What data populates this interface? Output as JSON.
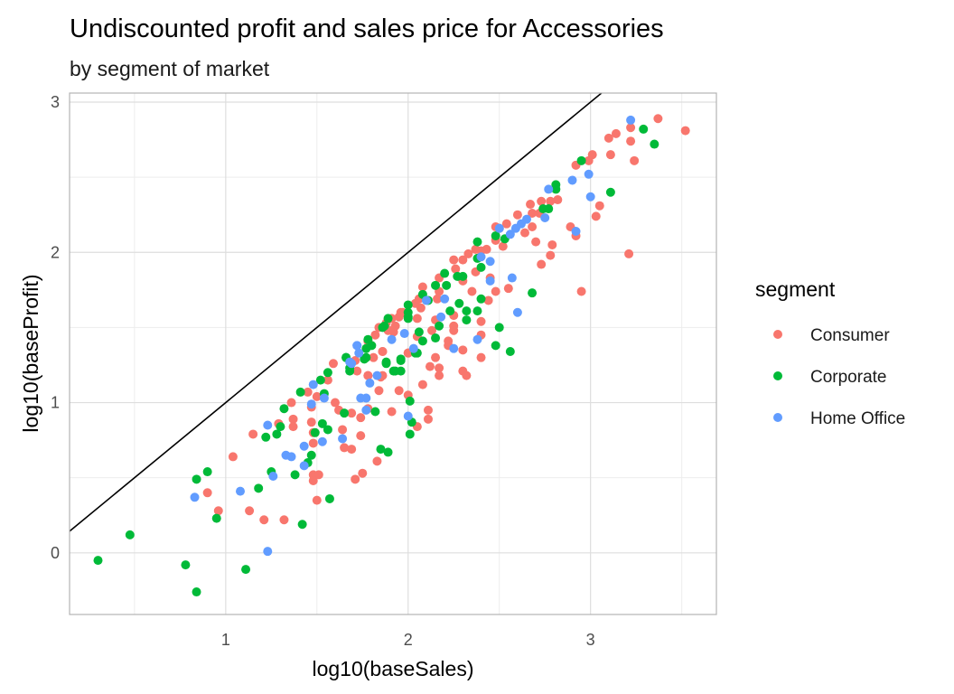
{
  "chart_data": {
    "type": "scatter",
    "title": "Undiscounted profit and sales price for Accessories",
    "subtitle": "by segment of market",
    "xlabel": "log10(baseSales)",
    "ylabel": "log10(baseProfit)",
    "xlim": [
      0.144,
      3.69
    ],
    "ylim": [
      -0.41,
      3.06
    ],
    "xticks": [
      1,
      2,
      3
    ],
    "yticks": [
      0,
      1,
      2,
      3
    ],
    "grid": true,
    "reference_line": {
      "label": "y = x",
      "slope": 1,
      "intercept": 0,
      "color": "#000000"
    },
    "legend": {
      "title": "segment",
      "placement": "right"
    },
    "series": [
      {
        "name": "Consumer",
        "color": "#F8766D",
        "points": [
          [
            0.9,
            0.4
          ],
          [
            0.96,
            0.28
          ],
          [
            1.04,
            0.64
          ],
          [
            1.13,
            0.28
          ],
          [
            1.21,
            0.22
          ],
          [
            1.32,
            0.22
          ],
          [
            1.15,
            0.79
          ],
          [
            1.36,
            1.0
          ],
          [
            1.37,
            0.89
          ],
          [
            1.37,
            0.84
          ],
          [
            1.29,
            0.86
          ],
          [
            1.47,
            0.87
          ],
          [
            1.48,
            0.8
          ],
          [
            1.48,
            0.73
          ],
          [
            1.48,
            0.52
          ],
          [
            1.51,
            0.52
          ],
          [
            1.48,
            0.48
          ],
          [
            1.5,
            0.35
          ],
          [
            1.64,
            0.82
          ],
          [
            1.65,
            0.7
          ],
          [
            1.69,
            0.69
          ],
          [
            1.74,
            0.78
          ],
          [
            1.71,
            0.49
          ],
          [
            1.75,
            0.53
          ],
          [
            1.83,
            0.61
          ],
          [
            1.91,
            0.94
          ],
          [
            1.74,
            0.9
          ],
          [
            1.69,
            0.93
          ],
          [
            1.62,
            0.95
          ],
          [
            1.78,
            0.96
          ],
          [
            1.47,
            0.97
          ],
          [
            1.6,
            1.0
          ],
          [
            1.45,
            1.07
          ],
          [
            1.5,
            1.04
          ],
          [
            1.59,
            1.26
          ],
          [
            1.56,
            1.15
          ],
          [
            1.72,
            1.21
          ],
          [
            1.78,
            1.41
          ],
          [
            1.78,
            1.18
          ],
          [
            1.86,
            1.34
          ],
          [
            1.85,
            1.17
          ],
          [
            1.84,
            1.08
          ],
          [
            1.95,
            1.08
          ],
          [
            2.0,
            1.05
          ],
          [
            2.05,
            0.84
          ],
          [
            2.0,
            1.33
          ],
          [
            2.08,
            1.12
          ],
          [
            2.11,
            0.95
          ],
          [
            2.11,
            0.89
          ],
          [
            1.96,
            1.6
          ],
          [
            1.88,
            1.53
          ],
          [
            1.89,
            1.48
          ],
          [
            3.37,
            2.89
          ],
          [
            3.52,
            2.81
          ],
          [
            3.22,
            2.83
          ],
          [
            3.22,
            2.74
          ],
          [
            3.14,
            2.79
          ],
          [
            3.1,
            2.76
          ],
          [
            3.11,
            2.65
          ],
          [
            3.24,
            2.61
          ],
          [
            3.01,
            2.65
          ],
          [
            2.99,
            2.61
          ],
          [
            2.92,
            2.58
          ],
          [
            3.05,
            2.31
          ],
          [
            3.03,
            2.24
          ],
          [
            2.82,
            2.35
          ],
          [
            2.78,
            2.34
          ],
          [
            2.73,
            2.34
          ],
          [
            2.67,
            2.32
          ],
          [
            2.72,
            2.26
          ],
          [
            2.68,
            2.26
          ],
          [
            2.6,
            2.25
          ],
          [
            2.54,
            2.19
          ],
          [
            2.5,
            2.16
          ],
          [
            2.48,
            2.17
          ],
          [
            2.52,
            2.04
          ],
          [
            2.68,
            2.17
          ],
          [
            2.64,
            2.13
          ],
          [
            2.7,
            2.07
          ],
          [
            2.79,
            2.05
          ],
          [
            2.89,
            2.17
          ],
          [
            2.92,
            2.11
          ],
          [
            2.78,
            1.98
          ],
          [
            2.73,
            1.92
          ],
          [
            3.21,
            1.99
          ],
          [
            2.95,
            1.74
          ],
          [
            2.55,
            1.76
          ],
          [
            2.4,
            1.3
          ],
          [
            2.4,
            1.45
          ],
          [
            2.4,
            1.54
          ],
          [
            2.44,
            1.68
          ],
          [
            2.48,
            1.74
          ],
          [
            2.45,
            1.83
          ],
          [
            2.35,
            1.74
          ],
          [
            2.25,
            1.58
          ],
          [
            2.15,
            1.55
          ],
          [
            2.25,
            1.51
          ],
          [
            2.25,
            1.48
          ],
          [
            2.13,
            1.48
          ],
          [
            2.22,
            1.41
          ],
          [
            2.22,
            1.38
          ],
          [
            2.3,
            1.35
          ],
          [
            2.15,
            1.3
          ],
          [
            2.12,
            1.24
          ],
          [
            2.17,
            1.23
          ],
          [
            2.3,
            1.21
          ],
          [
            2.32,
            1.18
          ],
          [
            2.17,
            1.18
          ],
          [
            2.05,
            1.44
          ],
          [
            2.0,
            1.33
          ],
          [
            1.92,
            1.47
          ],
          [
            1.86,
            1.34
          ],
          [
            1.86,
            1.18
          ],
          [
            2.48,
            2.08
          ],
          [
            2.43,
            2.02
          ],
          [
            2.4,
            2.01
          ],
          [
            2.37,
            2.02
          ],
          [
            2.37,
            1.87
          ],
          [
            2.33,
            1.99
          ],
          [
            2.3,
            1.95
          ],
          [
            2.25,
            1.95
          ],
          [
            2.26,
            1.89
          ],
          [
            2.3,
            1.81
          ],
          [
            2.17,
            1.83
          ],
          [
            2.08,
            1.77
          ],
          [
            2.17,
            1.74
          ],
          [
            2.16,
            1.69
          ],
          [
            2.06,
            1.69
          ],
          [
            2.04,
            1.66
          ],
          [
            2.07,
            1.63
          ],
          [
            1.97,
            1.6
          ],
          [
            1.95,
            1.57
          ],
          [
            2.05,
            1.56
          ],
          [
            1.91,
            1.56
          ],
          [
            1.84,
            1.5
          ],
          [
            1.93,
            1.51
          ],
          [
            1.91,
            1.48
          ],
          [
            1.82,
            1.45
          ],
          [
            1.78,
            1.41
          ],
          [
            1.71,
            1.28
          ],
          [
            1.81,
            1.3
          ],
          [
            1.78,
            1.18
          ]
        ]
      },
      {
        "name": "Corporate",
        "color": "#00BA38",
        "points": [
          [
            0.3,
            -0.05
          ],
          [
            0.475,
            0.12
          ],
          [
            0.78,
            -0.08
          ],
          [
            0.84,
            -0.26
          ],
          [
            1.11,
            -0.11
          ],
          [
            0.84,
            0.49
          ],
          [
            0.9,
            0.54
          ],
          [
            0.95,
            0.23
          ],
          [
            1.18,
            0.43
          ],
          [
            1.42,
            0.19
          ],
          [
            1.22,
            0.77
          ],
          [
            1.28,
            0.79
          ],
          [
            1.3,
            0.84
          ],
          [
            1.32,
            0.96
          ],
          [
            1.25,
            0.54
          ],
          [
            1.38,
            0.52
          ],
          [
            1.45,
            0.6
          ],
          [
            1.47,
            0.65
          ],
          [
            1.49,
            0.8
          ],
          [
            1.53,
            0.86
          ],
          [
            1.56,
            0.82
          ],
          [
            1.57,
            0.36
          ],
          [
            1.85,
            0.69
          ],
          [
            1.89,
            0.67
          ],
          [
            1.82,
            0.94
          ],
          [
            1.65,
            0.93
          ],
          [
            1.41,
            1.07
          ],
          [
            1.54,
            1.06
          ],
          [
            1.52,
            1.15
          ],
          [
            1.56,
            1.2
          ],
          [
            1.66,
            1.3
          ],
          [
            1.68,
            1.21
          ],
          [
            1.77,
            1.3
          ],
          [
            1.88,
            1.26
          ],
          [
            1.96,
            1.28
          ],
          [
            1.92,
            1.21
          ],
          [
            1.96,
            1.21
          ],
          [
            2.01,
            1.01
          ],
          [
            2.02,
            0.87
          ],
          [
            2.01,
            0.79
          ],
          [
            2.05,
            1.33
          ],
          [
            2.08,
            1.41
          ],
          [
            2.06,
            1.47
          ],
          [
            2.0,
            1.57
          ],
          [
            1.86,
            1.5
          ],
          [
            3.29,
            2.82
          ],
          [
            3.35,
            2.72
          ],
          [
            2.95,
            2.61
          ],
          [
            3.11,
            2.4
          ],
          [
            2.81,
            2.45
          ],
          [
            2.81,
            2.42
          ],
          [
            2.77,
            2.29
          ],
          [
            2.74,
            2.29
          ],
          [
            2.53,
            2.09
          ],
          [
            2.68,
            1.73
          ],
          [
            2.5,
            1.5
          ],
          [
            2.48,
            1.38
          ],
          [
            2.56,
            1.34
          ],
          [
            2.38,
            1.61
          ],
          [
            2.4,
            1.69
          ],
          [
            2.28,
            1.66
          ],
          [
            2.23,
            1.61
          ],
          [
            2.32,
            1.61
          ],
          [
            2.32,
            1.55
          ],
          [
            2.17,
            1.51
          ],
          [
            2.15,
            1.43
          ],
          [
            2.04,
            1.33
          ],
          [
            1.96,
            1.29
          ],
          [
            1.93,
            1.21
          ],
          [
            1.88,
            1.27
          ],
          [
            2.38,
            2.07
          ],
          [
            2.48,
            2.11
          ],
          [
            2.38,
            1.96
          ],
          [
            2.4,
            1.9
          ],
          [
            2.27,
            1.84
          ],
          [
            2.3,
            1.84
          ],
          [
            2.2,
            1.86
          ],
          [
            2.21,
            1.78
          ],
          [
            2.15,
            1.78
          ],
          [
            2.08,
            1.72
          ],
          [
            2.0,
            1.65
          ],
          [
            2.11,
            1.68
          ],
          [
            2.0,
            1.6
          ],
          [
            2.0,
            1.56
          ],
          [
            1.89,
            1.56
          ],
          [
            1.87,
            1.51
          ],
          [
            1.78,
            1.42
          ],
          [
            1.8,
            1.38
          ],
          [
            1.77,
            1.36
          ],
          [
            1.66,
            1.3
          ],
          [
            1.76,
            1.29
          ],
          [
            1.68,
            1.23
          ]
        ]
      },
      {
        "name": "Home Office",
        "color": "#619CFF",
        "points": [
          [
            1.23,
            0.01
          ],
          [
            0.83,
            0.37
          ],
          [
            1.08,
            0.41
          ],
          [
            1.23,
            0.85
          ],
          [
            1.33,
            0.65
          ],
          [
            1.36,
            0.64
          ],
          [
            1.26,
            0.51
          ],
          [
            1.43,
            0.71
          ],
          [
            1.43,
            0.58
          ],
          [
            1.53,
            0.74
          ],
          [
            1.64,
            0.76
          ],
          [
            1.77,
            0.95
          ],
          [
            1.47,
            0.99
          ],
          [
            1.54,
            1.03
          ],
          [
            1.48,
            1.12
          ],
          [
            1.69,
            1.26
          ],
          [
            1.72,
            1.38
          ],
          [
            1.79,
            1.13
          ],
          [
            1.77,
            1.03
          ],
          [
            1.74,
            1.03
          ],
          [
            2.0,
            0.91
          ],
          [
            1.98,
            1.46
          ],
          [
            1.91,
            1.42
          ],
          [
            3.22,
            2.88
          ],
          [
            2.99,
            2.52
          ],
          [
            2.9,
            2.48
          ],
          [
            3.0,
            2.37
          ],
          [
            2.77,
            2.42
          ],
          [
            2.75,
            2.23
          ],
          [
            2.65,
            2.22
          ],
          [
            2.62,
            2.19
          ],
          [
            2.59,
            2.16
          ],
          [
            2.56,
            2.12
          ],
          [
            2.5,
            2.16
          ],
          [
            2.92,
            2.14
          ],
          [
            2.57,
            1.83
          ],
          [
            2.6,
            1.6
          ],
          [
            2.38,
            1.42
          ],
          [
            2.45,
            1.81
          ],
          [
            2.18,
            1.57
          ],
          [
            2.25,
            1.36
          ],
          [
            2.03,
            1.36
          ],
          [
            1.83,
            1.18
          ],
          [
            2.4,
            1.97
          ],
          [
            2.45,
            1.94
          ],
          [
            2.2,
            1.69
          ],
          [
            2.1,
            1.68
          ],
          [
            1.72,
            1.38
          ],
          [
            1.73,
            1.33
          ],
          [
            1.68,
            1.27
          ]
        ]
      }
    ]
  }
}
